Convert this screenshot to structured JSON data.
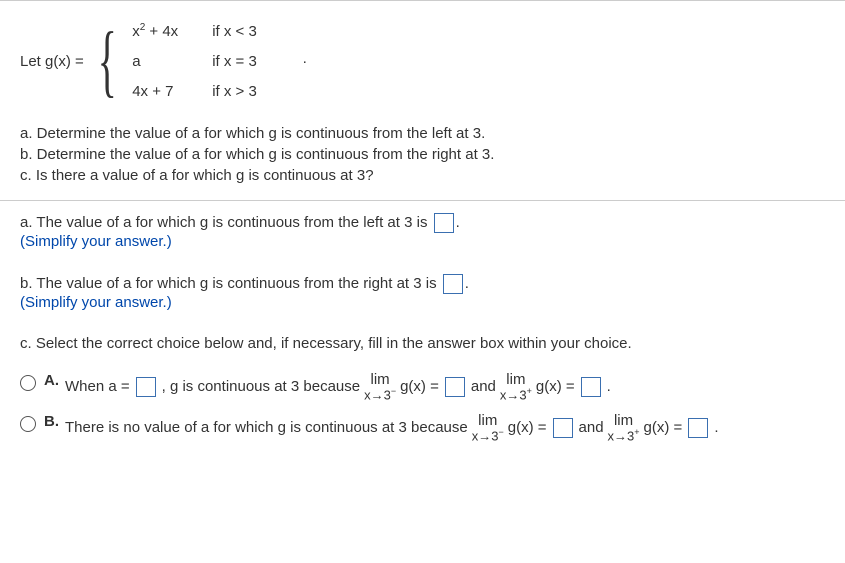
{
  "definition": {
    "let_label": "Let g(x) =",
    "cases": [
      {
        "expr_html": "x<sup>2</sup> + 4x",
        "cond": "if x < 3"
      },
      {
        "expr_html": "a",
        "cond": "if x = 3",
        "suffix": " ·"
      },
      {
        "expr_html": "4x + 7",
        "cond": "if x > 3"
      }
    ]
  },
  "questions": {
    "a": "a. Determine the value of a for which g is continuous from the left at 3.",
    "b": "b. Determine the value of a for which g is continuous from the right at 3.",
    "c": "c. Is there a value of a for which g is continuous at 3?"
  },
  "answers": {
    "a": {
      "text_before": "a. The value of a for which g is continuous from the left at 3 is",
      "text_after": ".",
      "simplify": "(Simplify your answer.)"
    },
    "b": {
      "text_before": "b. The value of a for which g is continuous from the right at 3 is",
      "text_after": ".",
      "simplify": "(Simplify your answer.)"
    },
    "c": {
      "prompt": "c. Select the correct choice below and, if necessary, fill in the answer box within your choice."
    }
  },
  "choices": {
    "A": {
      "label": "A.",
      "preA": "When a =",
      "postA": ", g is continuous at 3 because",
      "lim1": "lim",
      "lim1sub": "x→3",
      "sup1": "−",
      "mid1": "g(x) =",
      "and": "and",
      "lim2": "lim",
      "lim2sub": "x→3",
      "sup2": "+",
      "mid2": "g(x) =",
      "period": "."
    },
    "B": {
      "label": "B.",
      "pre": "There is no value of a for which g is continuous at 3 because",
      "lim1": "lim",
      "lim1sub": "x→3",
      "sup1": "−",
      "mid1": "g(x) =",
      "and": "and",
      "lim2": "lim",
      "lim2sub": "x→3",
      "sup2": "+",
      "mid2": "g(x) =",
      "period": "."
    }
  }
}
